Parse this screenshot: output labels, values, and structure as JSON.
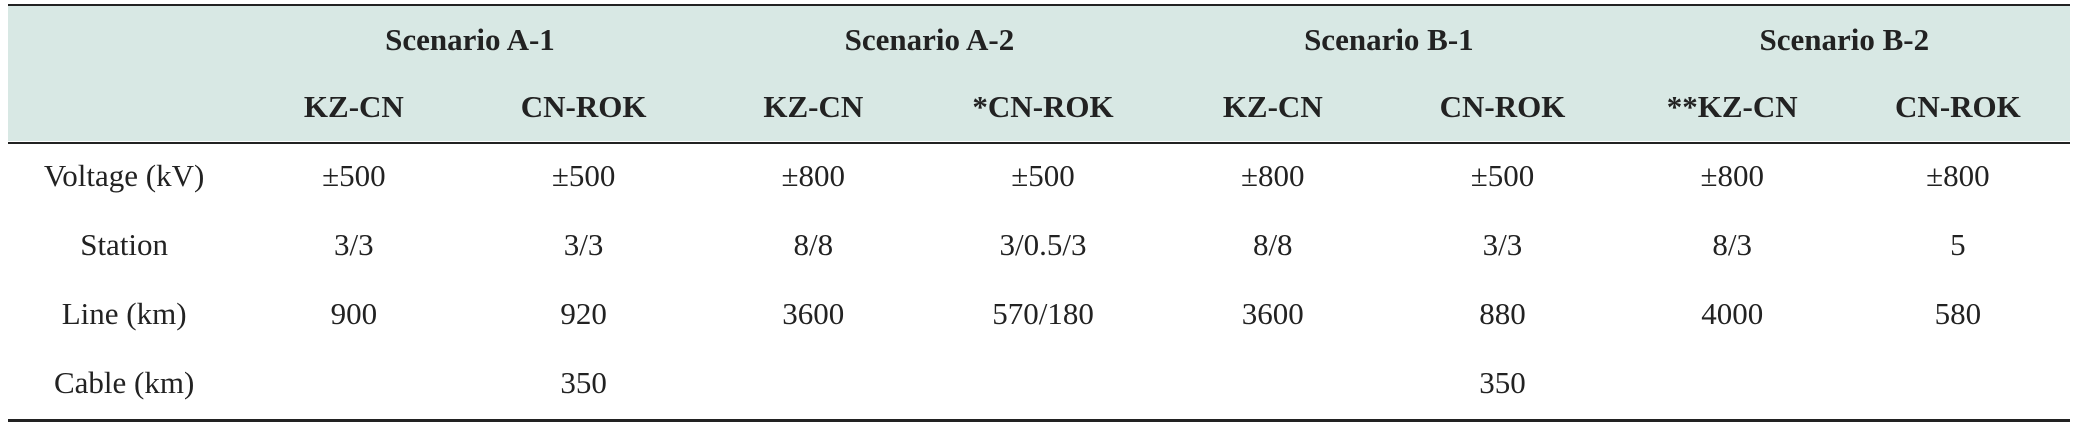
{
  "table": {
    "scenarios": [
      {
        "label": "Scenario A-1",
        "cols": [
          "KZ-CN",
          "CN-ROK"
        ]
      },
      {
        "label": "Scenario A-2",
        "cols": [
          "KZ-CN",
          "*CN-ROK"
        ]
      },
      {
        "label": "Scenario B-1",
        "cols": [
          "KZ-CN",
          "CN-ROK"
        ]
      },
      {
        "label": "Scenario B-2",
        "cols": [
          "**KZ-CN",
          "CN-ROK"
        ]
      }
    ],
    "rows": [
      {
        "label": "Voltage (kV)",
        "values": [
          "±500",
          "±500",
          "±800",
          "±500",
          "±800",
          "±500",
          "±800",
          "±800"
        ]
      },
      {
        "label": "Station",
        "values": [
          "3/3",
          "3/3",
          "8/8",
          "3/0.5/3",
          "8/8",
          "3/3",
          "8/3",
          "5"
        ]
      },
      {
        "label": "Line (km)",
        "values": [
          "900",
          "920",
          "3600",
          "570/180",
          "3600",
          "880",
          "4000",
          "580"
        ]
      },
      {
        "label": "Cable (km)",
        "values": [
          "",
          "350",
          "",
          "",
          "",
          "350",
          "",
          ""
        ]
      }
    ]
  }
}
